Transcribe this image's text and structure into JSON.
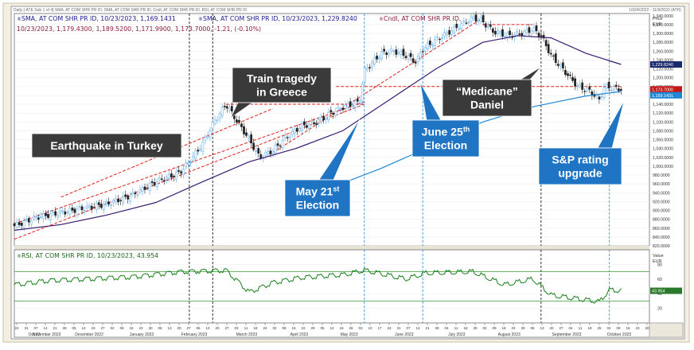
{
  "window": {
    "top_left_caption": "Daily [-ATE Sub 1 of 4] SMA, AT COM SHR PR ID, SMA, AT COM SHR PR ID, Cndl, AT COM SHR PR ID, RSI, AT COM SHR PR ID",
    "top_right_caption": "10/24/2022 - 11/9/2023 (ATH)"
  },
  "legend_price": {
    "line1_sma_a": "SMA, AT COM SHR PR ID, 10/23/2023, 1,169.1431",
    "line1_sma_b": "SMA, AT COM SHR PR ID, 10/23/2023, 1,229.8240",
    "line1_cndl": "Cndl, AT COM SHR PR ID,",
    "line2": "10/23/2023, 1,179.4300, 1,189.5200, 1,171.9900, 1,173.7000, -1.21, (-0.10%)"
  },
  "legend_rsi": "RSI, AT COM SHR PR ID, 10/23/2023, 43.954",
  "axis_price_header": [
    "Price",
    "EUR"
  ],
  "axis_rsi_header": [
    "Value",
    "EUR"
  ],
  "axis_price_ticks": [
    "1,340.0000",
    "1,320.0000",
    "1,300.0000",
    "1,280.0000",
    "1,260.0000",
    "1,240.0000",
    "1,220.0000",
    "1,200.0000",
    "1,180.0000",
    "1,160.0000",
    "1,140.0000",
    "1,120.0000",
    "1,100.0000",
    "1,080.0000",
    "1,060.0000",
    "1,040.0000",
    "1,020.0000",
    "1,000.0000",
    "980.0000",
    "960.0000",
    "940.0000",
    "920.0000",
    "900.0000",
    "880.0000",
    "860.0000",
    "840.0000",
    "820.0000"
  ],
  "axis_rsi_ticks": [
    "80",
    "60",
    "40",
    "20"
  ],
  "price_tags": [
    "1,229.8240",
    "1,173.7000",
    "1,169.1431"
  ],
  "rsi_tag": "43.954",
  "x_axis_days": [
    "24",
    "31",
    "07",
    "14",
    "21",
    "28",
    "05",
    "12",
    "19",
    "27",
    "02",
    "09",
    "16",
    "23",
    "30",
    "06",
    "13",
    "20",
    "27",
    "06",
    "13",
    "20",
    "27",
    "03",
    "11",
    "18",
    "24",
    "02",
    "08",
    "15",
    "22",
    "29",
    "05",
    "12",
    "19",
    "26",
    "03",
    "10",
    "17",
    "24",
    "31",
    "07",
    "14",
    "21",
    "28",
    "04",
    "11",
    "18",
    "25",
    "02",
    "09",
    "16",
    "23",
    "30",
    "06",
    "13",
    "20",
    "27",
    "04",
    "11",
    "18",
    "25",
    "02",
    "09",
    "16",
    "23",
    "30"
  ],
  "x_axis_months": [
    {
      "label": "Oct 22",
      "at": 0
    },
    {
      "label": "November 2022",
      "at": 5
    },
    {
      "label": "December 2022",
      "at": 22
    },
    {
      "label": "January 2023",
      "at": 43
    },
    {
      "label": "February 2023",
      "at": 64
    },
    {
      "label": "March 2023",
      "at": 85
    },
    {
      "label": "April 2023",
      "at": 106
    },
    {
      "label": "May 2023",
      "at": 126
    },
    {
      "label": "June 2023",
      "at": 148
    },
    {
      "label": "July 2023",
      "at": 169
    },
    {
      "label": "August 2023",
      "at": 190
    },
    {
      "label": "September 2023",
      "at": 213
    },
    {
      "label": "October 2023",
      "at": 234
    },
    {
      "label": "Nov 23",
      "at": 254
    }
  ],
  "annotations": [
    {
      "id": "earthquake",
      "text": [
        "Earthquake in Turkey"
      ],
      "style": "dark"
    },
    {
      "id": "train",
      "text": [
        "Train tragedy",
        "in Greece"
      ],
      "style": "dark"
    },
    {
      "id": "may21",
      "text": [
        "May 21",
        "Election"
      ],
      "sup": "st",
      "style": "blue"
    },
    {
      "id": "june25",
      "text": [
        "June 25",
        "Election"
      ],
      "sup": "th",
      "style": "blue"
    },
    {
      "id": "medicane",
      "text": [
        "“Medicane”",
        "Daniel"
      ],
      "style": "dark"
    },
    {
      "id": "sp",
      "text": [
        "S&P rating",
        "upgrade"
      ],
      "style": "blue"
    }
  ],
  "colors": {
    "candle_up": "#5aa9e6",
    "candle_down": "#222222",
    "sma_short": "#3a1a6e",
    "sma_long": "#1f88d6",
    "rsi_line": "#1a7f1a",
    "trend": "#e0201c",
    "callout_dark": "#3a3a3a",
    "callout_blue": "#1f74c4",
    "event_black": "#000000",
    "event_blue": "#1f88d6",
    "legend_text": "#1a1a8a",
    "legend_text2": "#8a1a3a"
  },
  "chart_data": {
    "type": "line",
    "title": "",
    "x_start": "2022-10-24",
    "x_end": "2023-11-09",
    "ylim": [
      820,
      1345
    ],
    "series": [
      {
        "name": "Cndl, AT COM SHR PR ID",
        "style": "candlestick",
        "points": [
          [
            "2022-10-24",
            865
          ],
          [
            "2022-11-07",
            885
          ],
          [
            "2022-11-21",
            895
          ],
          [
            "2022-12-05",
            905
          ],
          [
            "2022-12-19",
            915
          ],
          [
            "2023-01-03",
            935
          ],
          [
            "2023-01-17",
            965
          ],
          [
            "2023-01-31",
            985
          ],
          [
            "2023-02-06",
            1010
          ],
          [
            "2023-02-14",
            1050
          ],
          [
            "2023-02-20",
            1095
          ],
          [
            "2023-02-28",
            1140
          ],
          [
            "2023-03-06",
            1105
          ],
          [
            "2023-03-14",
            1060
          ],
          [
            "2023-03-20",
            1020
          ],
          [
            "2023-03-28",
            1035
          ],
          [
            "2023-04-05",
            1065
          ],
          [
            "2023-04-14",
            1090
          ],
          [
            "2023-04-24",
            1100
          ],
          [
            "2023-05-02",
            1120
          ],
          [
            "2023-05-10",
            1135
          ],
          [
            "2023-05-19",
            1145
          ],
          [
            "2023-05-22",
            1215
          ],
          [
            "2023-06-01",
            1255
          ],
          [
            "2023-06-09",
            1260
          ],
          [
            "2023-06-16",
            1250
          ],
          [
            "2023-06-22",
            1235
          ],
          [
            "2023-06-26",
            1265
          ],
          [
            "2023-07-06",
            1290
          ],
          [
            "2023-07-17",
            1315
          ],
          [
            "2023-07-26",
            1335
          ],
          [
            "2023-07-31",
            1330
          ],
          [
            "2023-08-07",
            1305
          ],
          [
            "2023-08-16",
            1295
          ],
          [
            "2023-08-25",
            1300
          ],
          [
            "2023-08-31",
            1310
          ],
          [
            "2023-09-05",
            1295
          ],
          [
            "2023-09-11",
            1250
          ],
          [
            "2023-09-19",
            1215
          ],
          [
            "2023-09-27",
            1180
          ],
          [
            "2023-10-04",
            1170
          ],
          [
            "2023-10-10",
            1150
          ],
          [
            "2023-10-13",
            1180
          ],
          [
            "2023-10-23",
            1174
          ]
        ]
      },
      {
        "name": "SMA, AT COM SHR PR ID",
        "style": "line-short",
        "points": [
          [
            "2022-10-24",
            855
          ],
          [
            "2022-11-21",
            868
          ],
          [
            "2022-12-19",
            890
          ],
          [
            "2023-01-17",
            918
          ],
          [
            "2023-02-14",
            965
          ],
          [
            "2023-03-14",
            1010
          ],
          [
            "2023-04-11",
            1040
          ],
          [
            "2023-05-09",
            1080
          ],
          [
            "2023-06-06",
            1150
          ],
          [
            "2023-07-04",
            1220
          ],
          [
            "2023-08-01",
            1280
          ],
          [
            "2023-08-22",
            1295
          ],
          [
            "2023-09-11",
            1290
          ],
          [
            "2023-10-02",
            1255
          ],
          [
            "2023-10-23",
            1230
          ]
        ]
      },
      {
        "name": "SMA, AT COM SHR PR ID",
        "style": "line-long",
        "points": [
          [
            "2023-05-01",
            950
          ],
          [
            "2023-06-01",
            995
          ],
          [
            "2023-07-01",
            1045
          ],
          [
            "2023-08-01",
            1100
          ],
          [
            "2023-09-01",
            1135
          ],
          [
            "2023-10-01",
            1158
          ],
          [
            "2023-10-23",
            1169
          ]
        ]
      },
      {
        "name": "RSI, AT COM SHR PR ID",
        "style": "rsi",
        "ylim": [
          0,
          100
        ],
        "points": [
          [
            "2022-10-24",
            52
          ],
          [
            "2022-11-14",
            58
          ],
          [
            "2022-12-05",
            60
          ],
          [
            "2023-01-03",
            63
          ],
          [
            "2023-02-01",
            70
          ],
          [
            "2023-02-28",
            72
          ],
          [
            "2023-03-14",
            42
          ],
          [
            "2023-03-28",
            55
          ],
          [
            "2023-04-14",
            62
          ],
          [
            "2023-05-10",
            66
          ],
          [
            "2023-05-22",
            72
          ],
          [
            "2023-06-16",
            60
          ],
          [
            "2023-06-28",
            68
          ],
          [
            "2023-07-26",
            70
          ],
          [
            "2023-08-14",
            52
          ],
          [
            "2023-08-31",
            60
          ],
          [
            "2023-09-11",
            38
          ],
          [
            "2023-09-27",
            33
          ],
          [
            "2023-10-10",
            29
          ],
          [
            "2023-10-16",
            45
          ],
          [
            "2023-10-23",
            44
          ]
        ]
      }
    ]
  }
}
